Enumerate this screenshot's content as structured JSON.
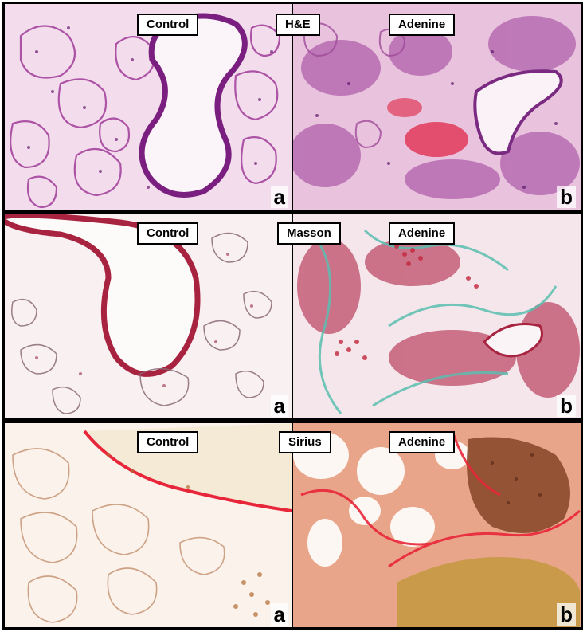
{
  "panels": [
    {
      "stain": "H&E",
      "control_label": "Control",
      "treatment_label": "Adenine",
      "left_letter": "a",
      "right_letter": "b"
    },
    {
      "stain": "Masson",
      "control_label": "Control",
      "treatment_label": "Adenine",
      "left_letter": "a",
      "right_letter": "b"
    },
    {
      "stain": "Sirius",
      "control_label": "Control",
      "treatment_label": "Adenine",
      "left_letter": "a",
      "right_letter": "b"
    }
  ],
  "colors": {
    "he_background": "#f3d6ea",
    "he_tissue": "#8a2c8c",
    "he_blood": "#e23a5a",
    "masson_background": "#f7eef0",
    "masson_tissue": "#b0264a",
    "masson_collagen": "#5bbfb0",
    "sirius_background": "#fbf1ea",
    "sirius_tissue": "#d9782e",
    "sirius_collagen": "#e8263a"
  }
}
